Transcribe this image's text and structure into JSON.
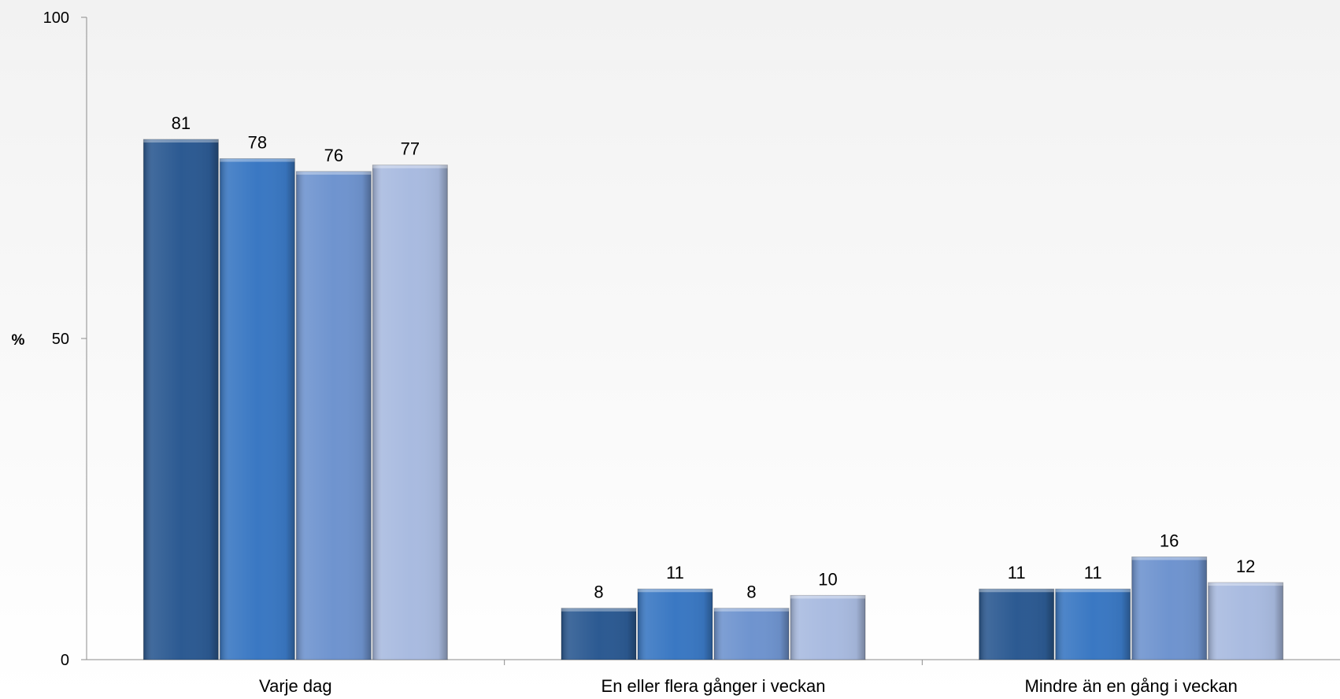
{
  "chart_data": {
    "type": "bar",
    "title": "",
    "xlabel": "",
    "ylabel": "%",
    "ylim": [
      0,
      100
    ],
    "yticks": [
      "0",
      "50",
      "100"
    ],
    "grid": false,
    "legend": "none",
    "categories": [
      "Varje dag",
      "En eller flera gånger i veckan",
      "Mindre än en gång i veckan"
    ],
    "series": [
      {
        "values": [
          81,
          8,
          11
        ],
        "color": "#2c5a92"
      },
      {
        "values": [
          78,
          11,
          11
        ],
        "color": "#3a78c3"
      },
      {
        "values": [
          76,
          8,
          16
        ],
        "color": "#6f94cf"
      },
      {
        "values": [
          77,
          10,
          12
        ],
        "color": "#a9bbe0"
      }
    ]
  }
}
